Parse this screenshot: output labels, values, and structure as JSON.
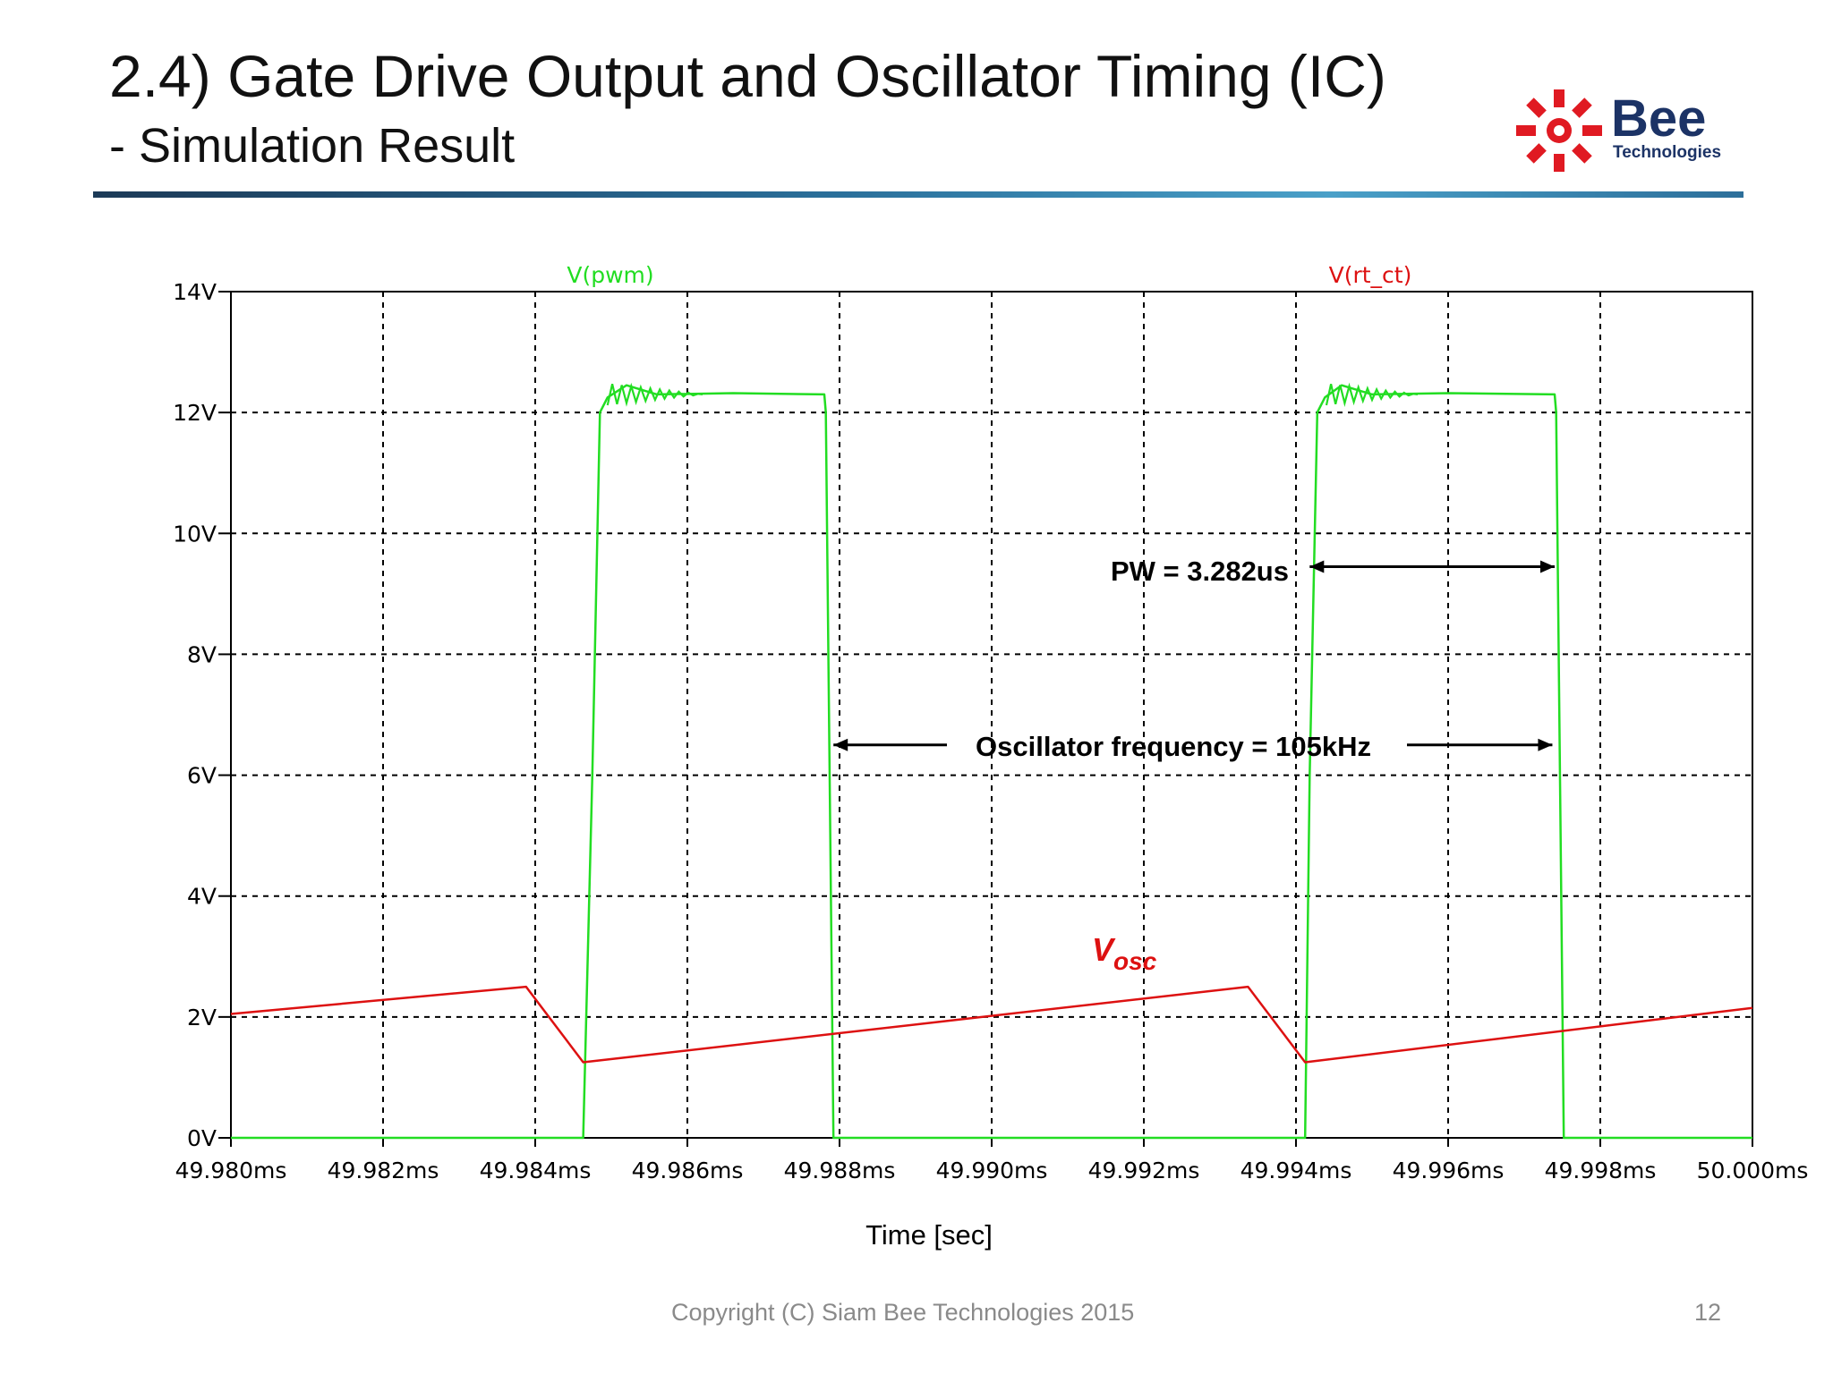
{
  "slide": {
    "title": "2.4) Gate Drive Output and Oscillator Timing (IC)",
    "subtitle": "- Simulation Result",
    "logo_text": "Bee",
    "logo_subtext": "Technologies",
    "footer": "Copyright (C) Siam Bee Technologies 2015",
    "page_number": "12"
  },
  "colors": {
    "pwm": "#22dd22",
    "osc": "#dd1111",
    "grid": "#000000",
    "logo_red": "#e01a22"
  },
  "chart_data": {
    "type": "line",
    "xlabel": "Time [sec]",
    "x_range_ms": [
      49.98,
      50.0
    ],
    "y_range_v": [
      0,
      14
    ],
    "x_ticks": [
      {
        "v": 49.98,
        "label": "49.980ms"
      },
      {
        "v": 49.982,
        "label": "49.982ms"
      },
      {
        "v": 49.984,
        "label": "49.984ms"
      },
      {
        "v": 49.986,
        "label": "49.986ms"
      },
      {
        "v": 49.988,
        "label": "49.988ms"
      },
      {
        "v": 49.99,
        "label": "49.990ms"
      },
      {
        "v": 49.992,
        "label": "49.992ms"
      },
      {
        "v": 49.994,
        "label": "49.994ms"
      },
      {
        "v": 49.996,
        "label": "49.996ms"
      },
      {
        "v": 49.998,
        "label": "49.998ms"
      },
      {
        "v": 50.0,
        "label": "50.000ms"
      }
    ],
    "y_ticks": [
      {
        "v": 0,
        "label": "0V"
      },
      {
        "v": 2,
        "label": "2V"
      },
      {
        "v": 4,
        "label": "4V"
      },
      {
        "v": 6,
        "label": "6V"
      },
      {
        "v": 8,
        "label": "8V"
      },
      {
        "v": 10,
        "label": "10V"
      },
      {
        "v": 12,
        "label": "12V"
      },
      {
        "v": 14,
        "label": "14V"
      }
    ],
    "grid": true,
    "series": [
      {
        "name": "V(pwm)",
        "color": "#22dd22",
        "x": [
          49.98,
          49.98463,
          49.98475,
          49.98485,
          49.98495,
          49.9852,
          49.9856,
          49.9866,
          49.9878,
          49.98782,
          49.98792,
          49.99412,
          49.99418,
          49.99428,
          49.99438,
          49.9946,
          49.995,
          49.996,
          49.9974,
          49.99742,
          49.99752,
          50.0
        ],
        "y": [
          0,
          0,
          6.0,
          12.0,
          12.25,
          12.45,
          12.3,
          12.32,
          12.3,
          12.0,
          0,
          0,
          6.0,
          12.0,
          12.25,
          12.45,
          12.3,
          12.32,
          12.3,
          12.0,
          0,
          0
        ]
      },
      {
        "name": "V(rt_ct)",
        "color": "#dd1111",
        "x": [
          49.98,
          49.98388,
          49.98463,
          49.99337,
          49.99412,
          50.0
        ],
        "y": [
          2.05,
          2.5,
          1.25,
          2.5,
          1.25,
          2.15
        ]
      }
    ],
    "annotations": [
      {
        "text": "PW = 3.282us",
        "arrow_from_ms": 49.99418,
        "arrow_to_ms": 49.9974,
        "arrow_v": 9.45
      },
      {
        "text": "Oscillator frequency = 105kHz",
        "arrow_from_ms": 49.98792,
        "arrow_to_ms": 49.99737,
        "arrow_v": 6.5
      },
      {
        "text": "V",
        "subscript": "osc"
      }
    ]
  }
}
